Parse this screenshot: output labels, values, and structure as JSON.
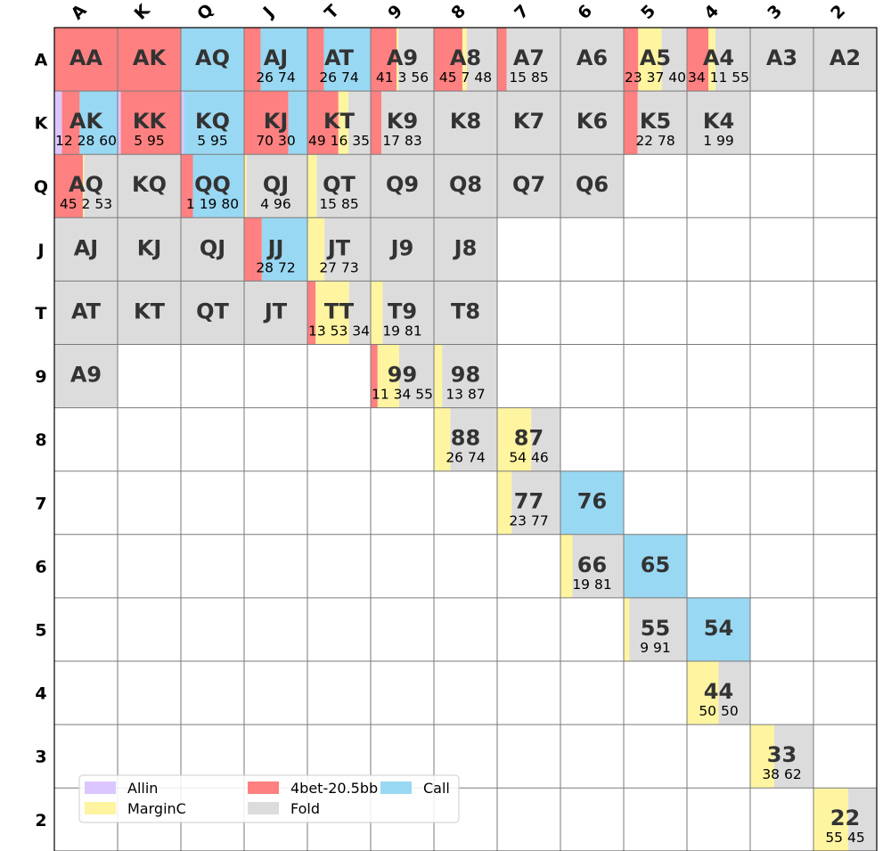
{
  "chart_data": {
    "type": "heatmap",
    "title": "",
    "xlabel": "",
    "ylabel": "",
    "column_labels": [
      "A",
      "K",
      "Q",
      "J",
      "T",
      "9",
      "8",
      "7",
      "6",
      "5",
      "4",
      "3",
      "2"
    ],
    "row_labels": [
      "A",
      "K",
      "Q",
      "J",
      "T",
      "9",
      "8",
      "7",
      "6",
      "5",
      "4",
      "3",
      "2"
    ],
    "actions": [
      {
        "name": "Allin",
        "color": "#dcc6ff"
      },
      {
        "name": "4bet-20.5bb",
        "color": "#ff8080"
      },
      {
        "name": "Call",
        "color": "#99d8f2"
      },
      {
        "name": "MarginC",
        "color": "#fff4a0"
      },
      {
        "name": "Fold",
        "color": "#dcdcdc"
      }
    ],
    "legend": {
      "placement": "lower-left",
      "columns": 3
    },
    "cells": [
      {
        "row": 0,
        "col": 0,
        "hand": "AA",
        "freqs": [
          0,
          100,
          0,
          0,
          0
        ],
        "freq_text": ""
      },
      {
        "row": 0,
        "col": 1,
        "hand": "AK",
        "freqs": [
          0,
          100,
          0,
          0,
          0
        ],
        "freq_text": ""
      },
      {
        "row": 0,
        "col": 2,
        "hand": "AQ",
        "freqs": [
          0,
          0,
          100,
          0,
          0
        ],
        "freq_text": ""
      },
      {
        "row": 0,
        "col": 3,
        "hand": "AJ",
        "freqs": [
          0,
          26,
          74,
          0,
          0
        ],
        "freq_text": "26 74"
      },
      {
        "row": 0,
        "col": 4,
        "hand": "AT",
        "freqs": [
          0,
          26,
          74,
          0,
          0
        ],
        "freq_text": "26 74"
      },
      {
        "row": 0,
        "col": 5,
        "hand": "A9",
        "freqs": [
          0,
          41,
          0,
          3,
          56
        ],
        "freq_text": "41  3 56"
      },
      {
        "row": 0,
        "col": 6,
        "hand": "A8",
        "freqs": [
          0,
          45,
          0,
          7,
          48
        ],
        "freq_text": "45  7 48"
      },
      {
        "row": 0,
        "col": 7,
        "hand": "A7",
        "freqs": [
          0,
          15,
          0,
          0,
          85
        ],
        "freq_text": "15    85"
      },
      {
        "row": 0,
        "col": 8,
        "hand": "A6",
        "freqs": [
          0,
          0,
          0,
          0,
          100
        ],
        "freq_text": ""
      },
      {
        "row": 0,
        "col": 9,
        "hand": "A5",
        "freqs": [
          0,
          23,
          0,
          37,
          40
        ],
        "freq_text": "23  37 40"
      },
      {
        "row": 0,
        "col": 10,
        "hand": "A4",
        "freqs": [
          0,
          34,
          0,
          11,
          55
        ],
        "freq_text": "34  11 55"
      },
      {
        "row": 0,
        "col": 11,
        "hand": "A3",
        "freqs": [
          0,
          0,
          0,
          0,
          100
        ],
        "freq_text": ""
      },
      {
        "row": 0,
        "col": 12,
        "hand": "A2",
        "freqs": [
          0,
          0,
          0,
          0,
          100
        ],
        "freq_text": ""
      },
      {
        "row": 1,
        "col": 0,
        "hand": "AK",
        "freqs": [
          12,
          28,
          60,
          0,
          0
        ],
        "freq_text": "12 28 60"
      },
      {
        "row": 1,
        "col": 1,
        "hand": "KK",
        "freqs": [
          5,
          95,
          0,
          0,
          0
        ],
        "freq_text": "5 95"
      },
      {
        "row": 1,
        "col": 2,
        "hand": "KQ",
        "freqs": [
          5,
          0,
          95,
          0,
          0
        ],
        "freq_text": "5 95"
      },
      {
        "row": 1,
        "col": 3,
        "hand": "KJ",
        "freqs": [
          0,
          70,
          30,
          0,
          0
        ],
        "freq_text": "70 30"
      },
      {
        "row": 1,
        "col": 4,
        "hand": "KT",
        "freqs": [
          0,
          49,
          0,
          16,
          35
        ],
        "freq_text": "49  16 35"
      },
      {
        "row": 1,
        "col": 5,
        "hand": "K9",
        "freqs": [
          0,
          17,
          0,
          0,
          83
        ],
        "freq_text": "17    83"
      },
      {
        "row": 1,
        "col": 6,
        "hand": "K8",
        "freqs": [
          0,
          0,
          0,
          0,
          100
        ],
        "freq_text": ""
      },
      {
        "row": 1,
        "col": 7,
        "hand": "K7",
        "freqs": [
          0,
          0,
          0,
          0,
          100
        ],
        "freq_text": ""
      },
      {
        "row": 1,
        "col": 8,
        "hand": "K6",
        "freqs": [
          0,
          0,
          0,
          0,
          100
        ],
        "freq_text": ""
      },
      {
        "row": 1,
        "col": 9,
        "hand": "K5",
        "freqs": [
          0,
          22,
          0,
          0,
          78
        ],
        "freq_text": "22    78"
      },
      {
        "row": 1,
        "col": 10,
        "hand": "K4",
        "freqs": [
          0,
          1,
          0,
          0,
          99
        ],
        "freq_text": "1    99"
      },
      {
        "row": 2,
        "col": 0,
        "hand": "AQ",
        "freqs": [
          0,
          45,
          0,
          2,
          53
        ],
        "freq_text": "45  2 53"
      },
      {
        "row": 2,
        "col": 1,
        "hand": "KQ",
        "freqs": [
          0,
          0,
          0,
          0,
          100
        ],
        "freq_text": ""
      },
      {
        "row": 2,
        "col": 2,
        "hand": "QQ",
        "freqs": [
          0,
          19,
          80,
          1,
          0
        ],
        "freq_text": "1 19 80"
      },
      {
        "row": 2,
        "col": 3,
        "hand": "QJ",
        "freqs": [
          0,
          0,
          0,
          4,
          96
        ],
        "freq_text": "4 96"
      },
      {
        "row": 2,
        "col": 4,
        "hand": "QT",
        "freqs": [
          0,
          0,
          0,
          15,
          85
        ],
        "freq_text": "15 85"
      },
      {
        "row": 2,
        "col": 5,
        "hand": "Q9",
        "freqs": [
          0,
          0,
          0,
          0,
          100
        ],
        "freq_text": ""
      },
      {
        "row": 2,
        "col": 6,
        "hand": "Q8",
        "freqs": [
          0,
          0,
          0,
          0,
          100
        ],
        "freq_text": ""
      },
      {
        "row": 2,
        "col": 7,
        "hand": "Q7",
        "freqs": [
          0,
          0,
          0,
          0,
          100
        ],
        "freq_text": ""
      },
      {
        "row": 2,
        "col": 8,
        "hand": "Q6",
        "freqs": [
          0,
          0,
          0,
          0,
          100
        ],
        "freq_text": ""
      },
      {
        "row": 3,
        "col": 0,
        "hand": "AJ",
        "freqs": [
          0,
          0,
          0,
          0,
          100
        ],
        "freq_text": ""
      },
      {
        "row": 3,
        "col": 1,
        "hand": "KJ",
        "freqs": [
          0,
          0,
          0,
          0,
          100
        ],
        "freq_text": ""
      },
      {
        "row": 3,
        "col": 2,
        "hand": "QJ",
        "freqs": [
          0,
          0,
          0,
          0,
          100
        ],
        "freq_text": ""
      },
      {
        "row": 3,
        "col": 3,
        "hand": "JJ",
        "freqs": [
          0,
          28,
          72,
          0,
          0
        ],
        "freq_text": "28 72"
      },
      {
        "row": 3,
        "col": 4,
        "hand": "JT",
        "freqs": [
          0,
          0,
          0,
          27,
          73
        ],
        "freq_text": "27 73"
      },
      {
        "row": 3,
        "col": 5,
        "hand": "J9",
        "freqs": [
          0,
          0,
          0,
          0,
          100
        ],
        "freq_text": ""
      },
      {
        "row": 3,
        "col": 6,
        "hand": "J8",
        "freqs": [
          0,
          0,
          0,
          0,
          100
        ],
        "freq_text": ""
      },
      {
        "row": 4,
        "col": 0,
        "hand": "AT",
        "freqs": [
          0,
          0,
          0,
          0,
          100
        ],
        "freq_text": ""
      },
      {
        "row": 4,
        "col": 1,
        "hand": "KT",
        "freqs": [
          0,
          0,
          0,
          0,
          100
        ],
        "freq_text": ""
      },
      {
        "row": 4,
        "col": 2,
        "hand": "QT",
        "freqs": [
          0,
          0,
          0,
          0,
          100
        ],
        "freq_text": ""
      },
      {
        "row": 4,
        "col": 3,
        "hand": "JT",
        "freqs": [
          0,
          0,
          0,
          0,
          100
        ],
        "freq_text": ""
      },
      {
        "row": 4,
        "col": 4,
        "hand": "TT",
        "freqs": [
          0,
          13,
          0,
          53,
          34
        ],
        "freq_text": "13  53 34"
      },
      {
        "row": 4,
        "col": 5,
        "hand": "T9",
        "freqs": [
          0,
          0,
          0,
          19,
          81
        ],
        "freq_text": "19 81"
      },
      {
        "row": 4,
        "col": 6,
        "hand": "T8",
        "freqs": [
          0,
          0,
          0,
          0,
          100
        ],
        "freq_text": ""
      },
      {
        "row": 5,
        "col": 0,
        "hand": "A9",
        "freqs": [
          0,
          0,
          0,
          0,
          100
        ],
        "freq_text": ""
      },
      {
        "row": 5,
        "col": 5,
        "hand": "99",
        "freqs": [
          0,
          11,
          0,
          34,
          55
        ],
        "freq_text": "11  34 55"
      },
      {
        "row": 5,
        "col": 6,
        "hand": "98",
        "freqs": [
          0,
          0,
          0,
          13,
          87
        ],
        "freq_text": "13 87"
      },
      {
        "row": 6,
        "col": 6,
        "hand": "88",
        "freqs": [
          0,
          0,
          0,
          26,
          74
        ],
        "freq_text": "26 74"
      },
      {
        "row": 6,
        "col": 7,
        "hand": "87",
        "freqs": [
          0,
          0,
          0,
          54,
          46
        ],
        "freq_text": "54 46"
      },
      {
        "row": 7,
        "col": 7,
        "hand": "77",
        "freqs": [
          0,
          0,
          0,
          23,
          77
        ],
        "freq_text": "23 77"
      },
      {
        "row": 7,
        "col": 8,
        "hand": "76",
        "freqs": [
          0,
          0,
          100,
          0,
          0
        ],
        "freq_text": ""
      },
      {
        "row": 8,
        "col": 8,
        "hand": "66",
        "freqs": [
          0,
          0,
          0,
          19,
          81
        ],
        "freq_text": "19 81"
      },
      {
        "row": 8,
        "col": 9,
        "hand": "65",
        "freqs": [
          0,
          0,
          100,
          0,
          0
        ],
        "freq_text": ""
      },
      {
        "row": 9,
        "col": 9,
        "hand": "55",
        "freqs": [
          0,
          0,
          0,
          9,
          91
        ],
        "freq_text": "9 91"
      },
      {
        "row": 9,
        "col": 10,
        "hand": "54",
        "freqs": [
          0,
          0,
          100,
          0,
          0
        ],
        "freq_text": ""
      },
      {
        "row": 10,
        "col": 10,
        "hand": "44",
        "freqs": [
          0,
          0,
          0,
          50,
          50
        ],
        "freq_text": "50 50"
      },
      {
        "row": 11,
        "col": 11,
        "hand": "33",
        "freqs": [
          0,
          0,
          0,
          38,
          62
        ],
        "freq_text": "38 62"
      },
      {
        "row": 12,
        "col": 12,
        "hand": "22",
        "freqs": [
          0,
          0,
          0,
          55,
          45
        ],
        "freq_text": "55 45"
      }
    ]
  }
}
